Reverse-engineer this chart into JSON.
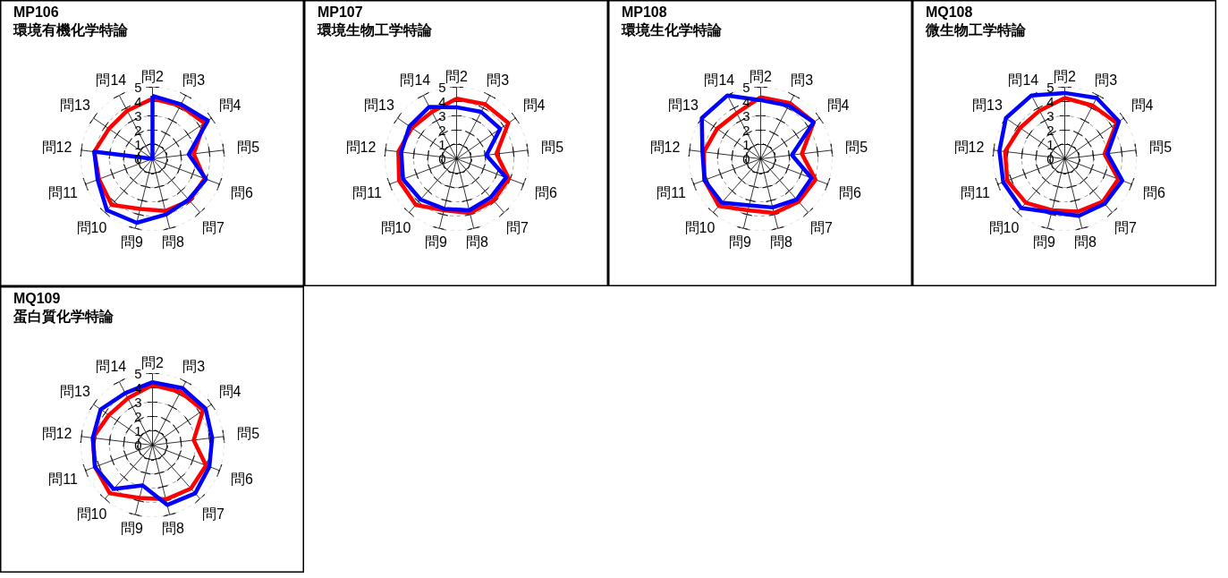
{
  "chart_data": [
    {
      "type": "radar",
      "title": "MP106",
      "subtitle": "環境有機化学特論",
      "categories": [
        "問2",
        "問3",
        "問4",
        "問5",
        "問6",
        "問7",
        "問8",
        "問9",
        "問10",
        "問11",
        "問12",
        "問13",
        "問14"
      ],
      "ylim": [
        0,
        5
      ],
      "yticks": [
        0,
        1,
        2,
        3,
        4,
        5
      ],
      "grid": true,
      "series": [
        {
          "color": "#ff0000",
          "values": [
            4.2,
            4.2,
            4.4,
            2.9,
            3.9,
            3.9,
            3.75,
            3.6,
            4.3,
            4.0,
            4.1,
            3.7,
            3.8
          ]
        },
        {
          "color": "#0000ff",
          "values": [
            4.4,
            4.3,
            4.7,
            2.55,
            4.0,
            3.8,
            4.0,
            4.6,
            4.8,
            4.1,
            4.1,
            0,
            0
          ]
        }
      ]
    },
    {
      "type": "radar",
      "title": "MP107",
      "subtitle": "環境生物工学特論",
      "categories": [
        "問2",
        "問3",
        "問4",
        "問5",
        "問6",
        "問7",
        "問8",
        "問9",
        "問10",
        "問11",
        "問12",
        "問13",
        "問14"
      ],
      "ylim": [
        0,
        5
      ],
      "yticks": [
        0,
        1,
        2,
        3,
        4,
        5
      ],
      "grid": true,
      "series": [
        {
          "color": "#ff0000",
          "values": [
            4.2,
            4.3,
            4.4,
            2.8,
            3.9,
            3.9,
            3.9,
            3.7,
            4.3,
            4.3,
            4.1,
            3.8,
            3.7
          ]
        },
        {
          "color": "#0000ff",
          "values": [
            3.6,
            3.7,
            3.7,
            2.1,
            3.7,
            3.6,
            3.7,
            3.6,
            3.8,
            4.0,
            3.9,
            4.0,
            4.1
          ]
        }
      ]
    },
    {
      "type": "radar",
      "title": "MP108",
      "subtitle": "環境生化学特論",
      "categories": [
        "問2",
        "問3",
        "問4",
        "問5",
        "問6",
        "問7",
        "問8",
        "問9",
        "問10",
        "問11",
        "問12",
        "問13",
        "問14"
      ],
      "ylim": [
        0,
        5
      ],
      "yticks": [
        0,
        1,
        2,
        3,
        4,
        5
      ],
      "grid": true,
      "series": [
        {
          "color": "#ff0000",
          "values": [
            4.3,
            4.4,
            4.5,
            2.9,
            4.1,
            4.0,
            3.9,
            3.7,
            4.4,
            4.2,
            4.0,
            3.7,
            3.6
          ]
        },
        {
          "color": "#0000ff",
          "values": [
            4.1,
            4.2,
            4.5,
            2.2,
            3.8,
            3.8,
            3.5,
            3.35,
            4.1,
            4.2,
            4.1,
            5.0,
            5.0
          ]
        }
      ]
    },
    {
      "type": "radar",
      "title": "MQ108",
      "subtitle": "微生物工学特論",
      "categories": [
        "問2",
        "問3",
        "問4",
        "問5",
        "問6",
        "問7",
        "問8",
        "問9",
        "問10",
        "問11",
        "問12",
        "問13",
        "問14"
      ],
      "ylim": [
        0,
        5
      ],
      "yticks": [
        0,
        1,
        2,
        3,
        4,
        5
      ],
      "grid": true,
      "series": [
        {
          "color": "#ff0000",
          "values": [
            4.25,
            4.2,
            4.4,
            2.8,
            4.0,
            4.0,
            3.8,
            3.7,
            4.1,
            4.3,
            4.2,
            3.8,
            3.8
          ]
        },
        {
          "color": "#0000ff",
          "values": [
            4.6,
            4.8,
            4.6,
            3.0,
            4.3,
            4.2,
            4.1,
            3.85,
            4.6,
            4.6,
            4.6,
            5.0,
            5.0
          ]
        }
      ]
    },
    {
      "type": "radar",
      "title": "MQ109",
      "subtitle": "蛋白質化学特論",
      "categories": [
        "問2",
        "問3",
        "問4",
        "問5",
        "問6",
        "問7",
        "問8",
        "問9",
        "問10",
        "問11",
        "問12",
        "問13",
        "問14"
      ],
      "ylim": [
        0,
        5
      ],
      "yticks": [
        0,
        1,
        2,
        3,
        4,
        5
      ],
      "grid": true,
      "series": [
        {
          "color": "#ff0000",
          "values": [
            4.2,
            4.2,
            4.3,
            2.9,
            4.0,
            4.05,
            3.9,
            3.8,
            4.5,
            4.3,
            4.2,
            3.7,
            3.7
          ]
        },
        {
          "color": "#0000ff",
          "values": [
            4.4,
            4.5,
            4.5,
            4.2,
            4.25,
            4.5,
            4.3,
            2.9,
            4.1,
            4.3,
            4.2,
            4.4,
            4.1
          ]
        }
      ]
    }
  ]
}
